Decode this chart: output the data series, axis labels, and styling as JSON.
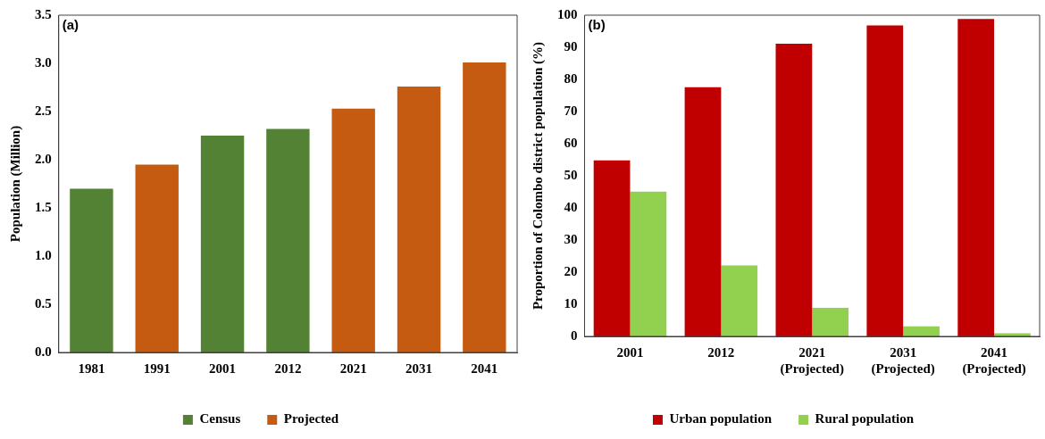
{
  "chart_data": [
    {
      "type": "bar",
      "stacked": true,
      "ylabel": "Population (Million)",
      "annotations": [
        "(a)"
      ],
      "categories": [
        "1981",
        "1991",
        "2001",
        "2012",
        "2021",
        "2031",
        "2041"
      ],
      "series": [
        {
          "name": "Census",
          "color": "#548235",
          "values": [
            1.7,
            null,
            2.25,
            2.32,
            null,
            null,
            null
          ]
        },
        {
          "name": "Projected",
          "color": "#c55a11",
          "values": [
            null,
            1.95,
            null,
            null,
            2.53,
            2.76,
            3.01
          ]
        }
      ],
      "ylim": [
        0,
        3.5
      ],
      "yticks": [
        {
          "value": 0,
          "label": "0.0"
        },
        {
          "value": 0.5,
          "label": "0.5"
        },
        {
          "value": 1,
          "label": "1.0"
        },
        {
          "value": 1.5,
          "label": "1.5"
        },
        {
          "value": 2,
          "label": "2.0"
        },
        {
          "value": 2.5,
          "label": "2.5"
        },
        {
          "value": 3,
          "label": "3.0"
        },
        {
          "value": 3.5,
          "label": "3.5"
        }
      ],
      "grid": false,
      "legend": "bottom"
    },
    {
      "type": "bar",
      "ylabel": "Proportion of Colombo district population (%)",
      "annotations": [
        "(b)"
      ],
      "categories": [
        "2001",
        "2012",
        "2021\n(Projected)",
        "2031\n(Projected)",
        "2041\n(Projected)"
      ],
      "series": [
        {
          "name": "Urban population",
          "color": "#c00000",
          "values": [
            54.8,
            77.6,
            91.1,
            96.8,
            98.8
          ]
        },
        {
          "name": "Rural population",
          "color": "#92d050",
          "values": [
            45.1,
            22.1,
            8.9,
            3.1,
            1.0
          ]
        }
      ],
      "ylim": [
        0,
        100
      ],
      "yticks": [
        0,
        10,
        20,
        30,
        40,
        50,
        60,
        70,
        80,
        90,
        100
      ],
      "grid": false,
      "legend": "bottom"
    }
  ]
}
